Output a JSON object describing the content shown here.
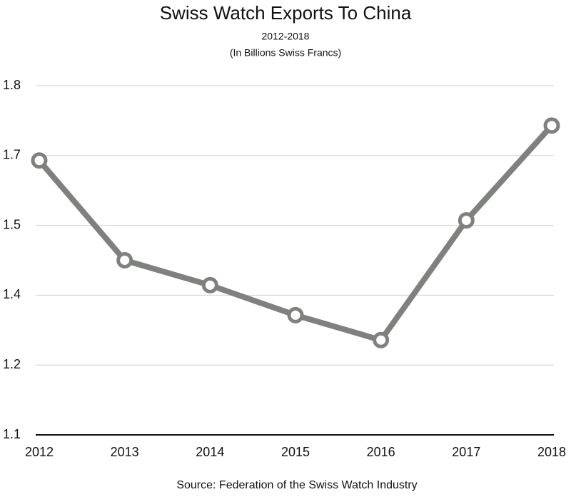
{
  "chart_data": {
    "type": "line",
    "title": "Swiss Watch Exports To China",
    "subtitle": "2012-2018",
    "y_label": "(In Billions Swiss Francs)",
    "source": "Source: Federation of the Swiss Watch Industry",
    "categories": [
      "2012",
      "2013",
      "2014",
      "2015",
      "2016",
      "2017",
      "2018"
    ],
    "values": [
      1.65,
      1.45,
      1.4,
      1.34,
      1.29,
      1.53,
      1.72
    ],
    "color": "#7e817d",
    "ylim": [
      1.1,
      1.8
    ],
    "yticks": [
      1.1,
      {
        "value": 1.24,
        "label": "1.2"
      },
      {
        "value": 1.38,
        "label": "1.4"
      },
      {
        "value": 1.52,
        "label": "1.5"
      },
      {
        "value": 1.66,
        "label": "1.7"
      },
      1.8
    ],
    "grid": true
  }
}
